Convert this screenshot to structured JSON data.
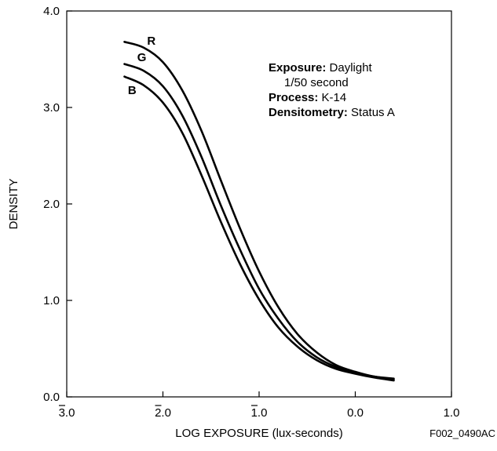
{
  "chart_data": {
    "type": "line",
    "title": "",
    "xlabel": "LOG EXPOSURE (lux-seconds)",
    "ylabel": "DENSITY",
    "xlim": [
      -3.0,
      1.0
    ],
    "ylim": [
      0.0,
      4.0
    ],
    "x_ticks": [
      {
        "value": -3.0,
        "label": "3.0",
        "bar": true
      },
      {
        "value": -2.0,
        "label": "2.0",
        "bar": true
      },
      {
        "value": -1.0,
        "label": "1.0",
        "bar": true
      },
      {
        "value": 0.0,
        "label": "0.0",
        "bar": false
      },
      {
        "value": 1.0,
        "label": "1.0",
        "bar": false
      }
    ],
    "y_ticks": [
      {
        "value": 0.0,
        "label": "0.0"
      },
      {
        "value": 1.0,
        "label": "1.0"
      },
      {
        "value": 2.0,
        "label": "2.0"
      },
      {
        "value": 3.0,
        "label": "3.0"
      },
      {
        "value": 4.0,
        "label": "4.0"
      }
    ],
    "grid": false,
    "series": [
      {
        "name": "R",
        "x": [
          -2.4,
          -2.2,
          -2.0,
          -1.8,
          -1.6,
          -1.4,
          -1.2,
          -1.0,
          -0.8,
          -0.6,
          -0.4,
          -0.2,
          0.0,
          0.2,
          0.4
        ],
        "y": [
          3.68,
          3.62,
          3.47,
          3.18,
          2.76,
          2.25,
          1.75,
          1.3,
          0.93,
          0.65,
          0.46,
          0.33,
          0.26,
          0.21,
          0.19
        ]
      },
      {
        "name": "G",
        "x": [
          -2.4,
          -2.2,
          -2.0,
          -1.8,
          -1.6,
          -1.4,
          -1.2,
          -1.0,
          -0.8,
          -0.6,
          -0.4,
          -0.2,
          0.0,
          0.2,
          0.4
        ],
        "y": [
          3.45,
          3.38,
          3.22,
          2.92,
          2.49,
          1.99,
          1.53,
          1.12,
          0.81,
          0.57,
          0.41,
          0.31,
          0.25,
          0.21,
          0.18
        ]
      },
      {
        "name": "B",
        "x": [
          -2.4,
          -2.2,
          -2.0,
          -1.8,
          -1.6,
          -1.4,
          -1.2,
          -1.0,
          -0.8,
          -0.6,
          -0.4,
          -0.2,
          0.0,
          0.2,
          0.4
        ],
        "y": [
          3.32,
          3.23,
          3.05,
          2.74,
          2.3,
          1.82,
          1.38,
          1.01,
          0.72,
          0.52,
          0.38,
          0.29,
          0.24,
          0.2,
          0.17
        ]
      }
    ],
    "series_label_positions": [
      {
        "name": "R",
        "x": -2.12,
        "y": 3.65
      },
      {
        "name": "G",
        "x": -2.22,
        "y": 3.48
      },
      {
        "name": "B",
        "x": -2.32,
        "y": 3.14
      }
    ],
    "annotations": [
      {
        "bold": "Exposure:",
        "text": " Daylight"
      },
      {
        "bold": "",
        "text": "1/50 second"
      },
      {
        "bold": "Process:",
        "text": " K-14"
      },
      {
        "bold": "Densitometry:",
        "text": " Status A"
      }
    ],
    "figure_id": "F002_0490AC",
    "line_color": "#000000"
  }
}
